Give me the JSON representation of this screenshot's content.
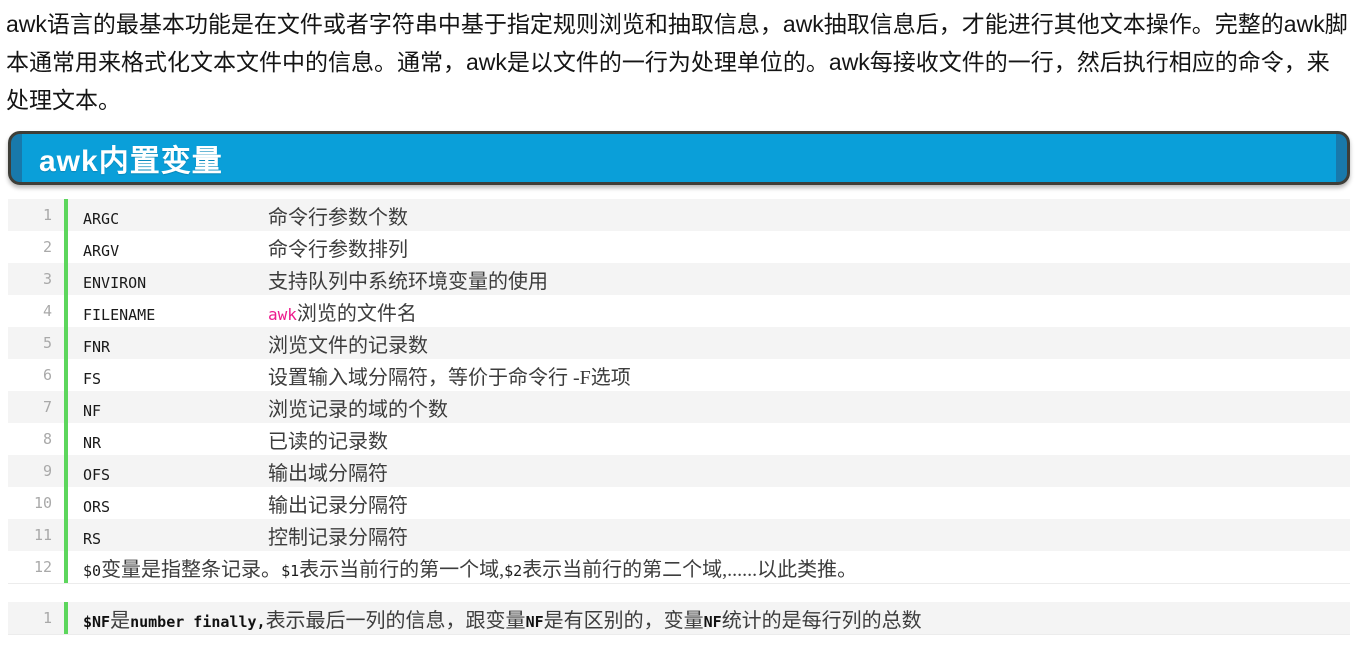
{
  "colors": {
    "header_blue": "#0a9fd9",
    "header_blue_dark_edge": "#1879ab",
    "header_border": "#3e3e38",
    "accent_green_bar": "#5cd65c",
    "highlight_pink": "#ed1a8d",
    "row_alt_background": "#f4f4f4",
    "line_number_gray": "#a9a9a9"
  },
  "intro": {
    "text": "awk语言的最基本功能是在文件或者字符串中基于指定规则浏览和抽取信息，awk抽取信息后，才能进行其他文本操作。完整的awk脚本通常用来格式化文本文件中的信息。通常，awk是以文件的一行为处理单位的。awk每接收文件的一行，然后执行相应的命令，来处理文本。"
  },
  "section": {
    "title": "awk内置变量"
  },
  "code1": {
    "rows": [
      {
        "num": "1",
        "name": "ARGC",
        "desc": "命令行参数个数"
      },
      {
        "num": "2",
        "name": "ARGV",
        "desc": "命令行参数排列"
      },
      {
        "num": "3",
        "name": "ENVIRON",
        "desc": "支持队列中系统环境变量的使用"
      },
      {
        "num": "4",
        "name": "FILENAME",
        "desc_pink": "awk",
        "desc": "浏览的文件名"
      },
      {
        "num": "5",
        "name": "FNR",
        "desc": "浏览文件的记录数"
      },
      {
        "num": "6",
        "name": "FS",
        "desc": "设置输入域分隔符，等价于命令行 -F选项"
      },
      {
        "num": "7",
        "name": "NF",
        "desc": "浏览记录的域的个数"
      },
      {
        "num": "8",
        "name": "NR",
        "desc": "已读的记录数"
      },
      {
        "num": "9",
        "name": "OFS",
        "desc": "输出域分隔符"
      },
      {
        "num": "10",
        "name": "ORS",
        "desc": "输出记录分隔符"
      },
      {
        "num": "11",
        "name": "RS",
        "desc": "控制记录分隔符"
      },
      {
        "num": "12",
        "seg": [
          "$0",
          "变量是指整条记录。",
          "$1",
          "表示当前行的第一个域,",
          "$2",
          "表示当前行的第二个域,......以此类推。"
        ]
      }
    ]
  },
  "code2": {
    "rows": [
      {
        "num": "1",
        "seg": [
          "$NF",
          "是",
          "number finally,",
          "表示最后一列的信息，跟变量",
          "NF",
          "是有区别的，变量",
          "NF",
          "统计的是每行列的总数"
        ]
      }
    ]
  }
}
